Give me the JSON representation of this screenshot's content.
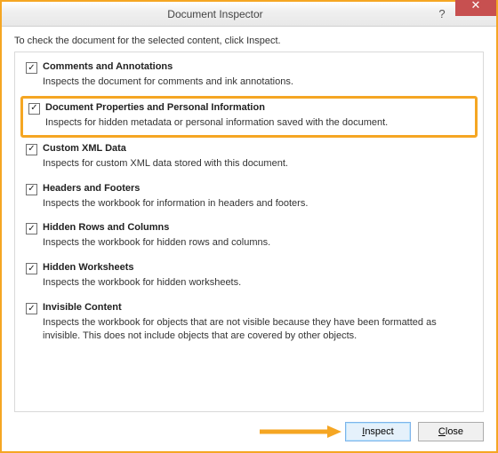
{
  "window": {
    "title": "Document Inspector",
    "help_symbol": "?",
    "close_symbol": "✕"
  },
  "instruction": "To check the document for the selected content, click Inspect.",
  "items": [
    {
      "checked": true,
      "title": "Comments and Annotations",
      "desc": "Inspects the document for comments and ink annotations.",
      "highlight": false
    },
    {
      "checked": true,
      "title": "Document Properties and Personal Information",
      "desc": "Inspects for hidden metadata or personal information saved with the document.",
      "highlight": true
    },
    {
      "checked": true,
      "title": "Custom XML Data",
      "desc": "Inspects for custom XML data stored with this document.",
      "highlight": false
    },
    {
      "checked": true,
      "title": "Headers and Footers",
      "desc": "Inspects the workbook for information in headers and footers.",
      "highlight": false
    },
    {
      "checked": true,
      "title": "Hidden Rows and Columns",
      "desc": "Inspects the workbook for hidden rows and columns.",
      "highlight": false
    },
    {
      "checked": true,
      "title": "Hidden Worksheets",
      "desc": "Inspects the workbook for hidden worksheets.",
      "highlight": false
    },
    {
      "checked": true,
      "title": "Invisible Content",
      "desc": "Inspects the workbook for objects that are not visible because they have been formatted as invisible. This does not include objects that are covered by other objects.",
      "highlight": false
    }
  ],
  "buttons": {
    "inspect_prefix": "I",
    "inspect_rest": "nspect",
    "close_prefix": "C",
    "close_rest": "lose"
  },
  "colors": {
    "accent": "#f5a623",
    "close_btn": "#c75050",
    "primary_border": "#7eb4ea"
  }
}
